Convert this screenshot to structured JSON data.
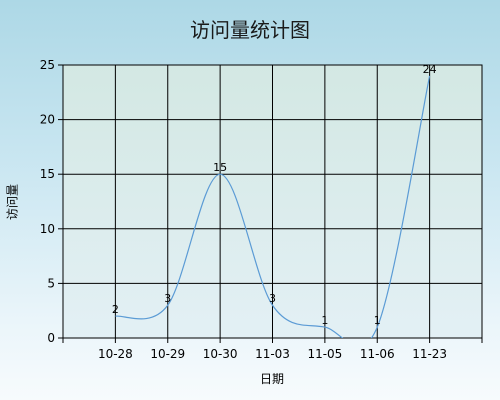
{
  "chart_data": {
    "type": "line",
    "title": "访问量统计图",
    "xlabel": "日期",
    "ylabel": "访问量",
    "categories": [
      "10-28",
      "10-29",
      "10-30",
      "11-03",
      "11-05",
      "11-06",
      "11-23"
    ],
    "series": [
      {
        "values": [
          2,
          3,
          15,
          3,
          1,
          1,
          24
        ]
      }
    ],
    "ylim": [
      0,
      25
    ],
    "yticks": [
      0,
      5,
      10,
      15,
      20,
      25
    ],
    "grid": true,
    "smooth": true,
    "colors": {
      "line": "#5b9bd5",
      "grid": "#000000",
      "plot_background_top": "#d3e8e3",
      "plot_background_bottom": "#e3f0f5"
    }
  }
}
